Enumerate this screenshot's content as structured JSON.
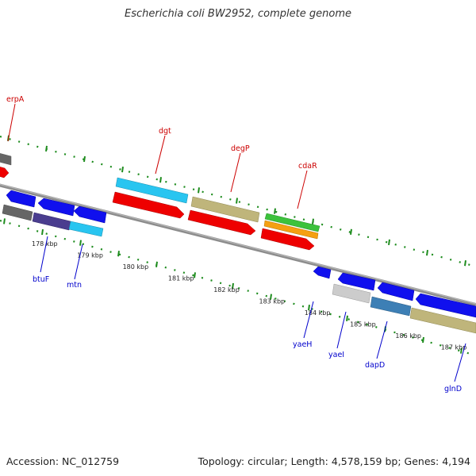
{
  "title": "Escherichia coli BW2952, complete genome",
  "footer": {
    "accession": "Accession: NC_012759",
    "summary": "Topology: circular; Length: 4,578,159 bp; Genes: 4,194"
  },
  "colors": {
    "backbone": "#8c8c8c",
    "tick": "#1e8c1e",
    "label_red": "#cc0000",
    "label_blue": "#0000cc"
  },
  "scale": {
    "unit": "kbp",
    "labels": [
      {
        "kbp": 178,
        "text": "178 kbp"
      },
      {
        "kbp": 179,
        "text": "179 kbp"
      },
      {
        "kbp": 180,
        "text": "180 kbp"
      },
      {
        "kbp": 181,
        "text": "181 kbp"
      },
      {
        "kbp": 182,
        "text": "182 kbp"
      },
      {
        "kbp": 183,
        "text": "183 kbp"
      },
      {
        "kbp": 184,
        "text": "184 kbp"
      },
      {
        "kbp": 185,
        "text": "185 kbp"
      },
      {
        "kbp": 186,
        "text": "186 kbp"
      },
      {
        "kbp": 187,
        "text": "187 kbp"
      }
    ]
  },
  "genes": [
    {
      "name": "erpA",
      "strand": "forward",
      "label_color": "red"
    },
    {
      "name": "dgt",
      "strand": "forward",
      "label_color": "red"
    },
    {
      "name": "degP",
      "strand": "forward",
      "label_color": "red"
    },
    {
      "name": "cdaR",
      "strand": "forward",
      "label_color": "red"
    },
    {
      "name": "btuF",
      "strand": "reverse",
      "label_color": "blue"
    },
    {
      "name": "mtn",
      "strand": "reverse",
      "label_color": "blue"
    },
    {
      "name": "yaeH",
      "strand": "reverse",
      "label_color": "blue"
    },
    {
      "name": "yaeI",
      "strand": "reverse",
      "label_color": "blue"
    },
    {
      "name": "dapD",
      "strand": "reverse",
      "label_color": "blue"
    },
    {
      "name": "glnD",
      "strand": "reverse",
      "label_color": "blue"
    }
  ]
}
